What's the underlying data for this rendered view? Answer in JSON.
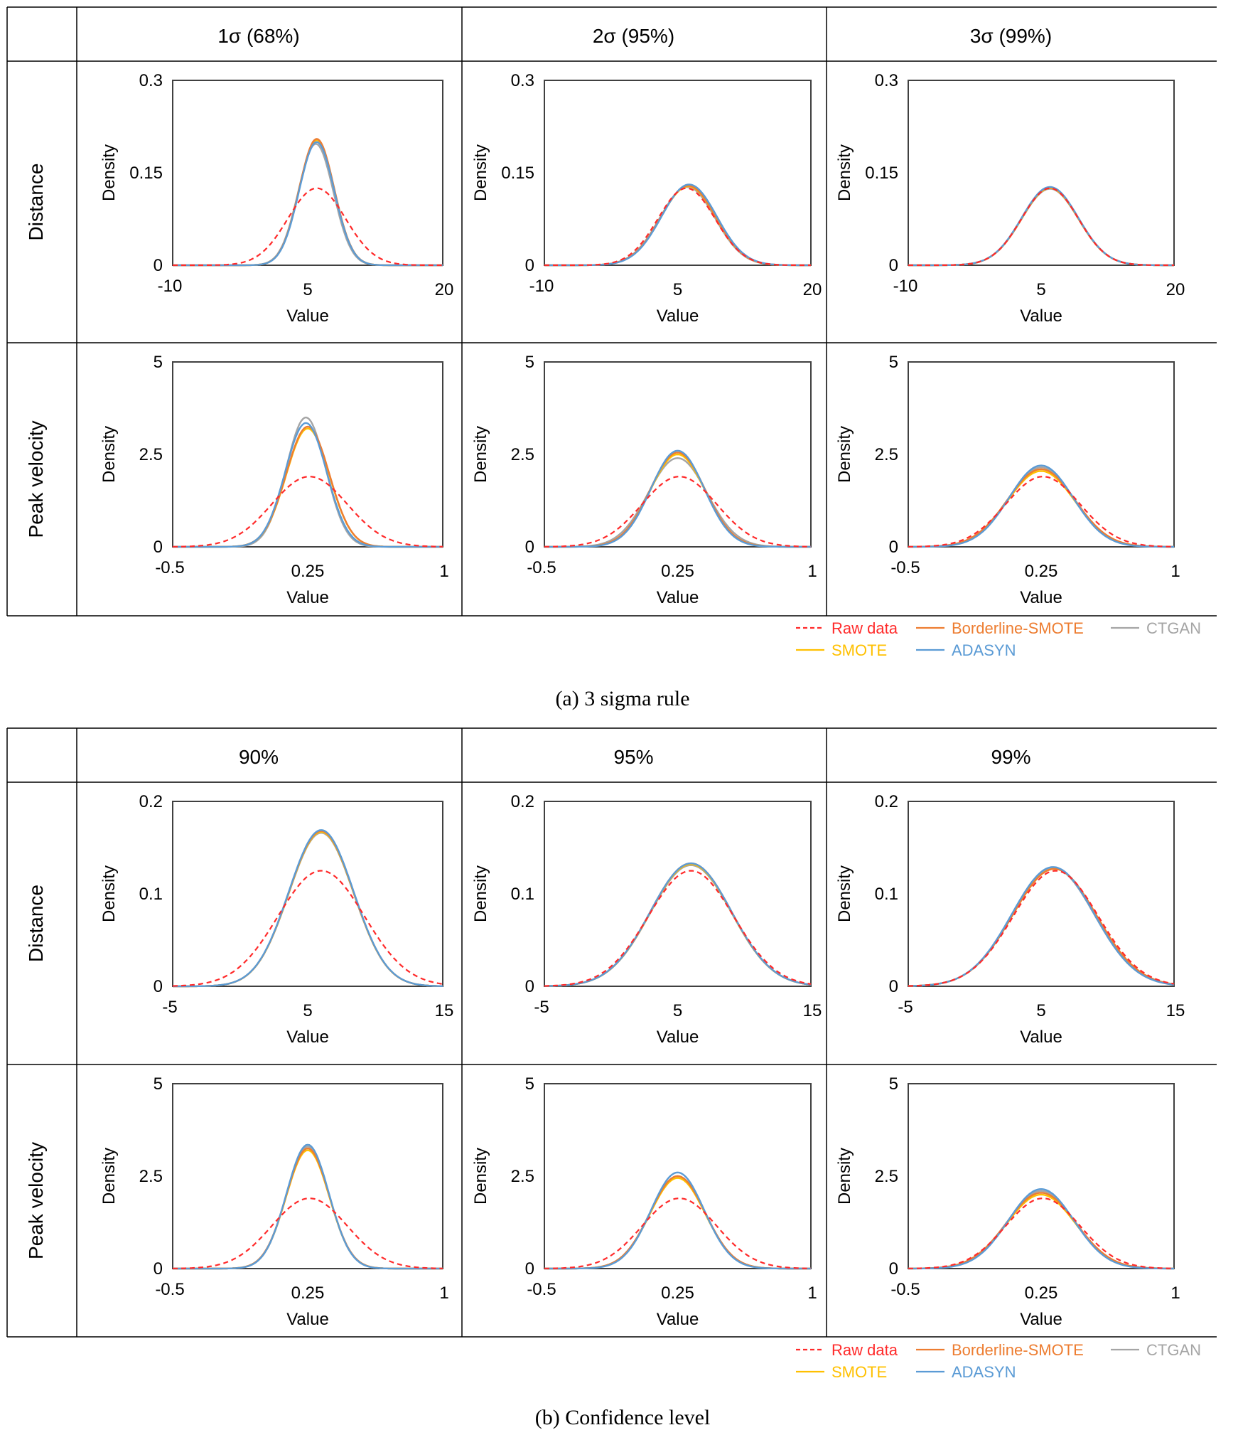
{
  "figure": {
    "row_labels": [
      "Distance",
      "Peak velocity"
    ],
    "x_axis_label": "Value",
    "y_axis_label": "Density",
    "colors": {
      "raw": "#ff2a2a",
      "smote": "#ffc000",
      "borderline": "#ed7d31",
      "adasyn": "#5b9bd5",
      "ctgan": "#a5a5a5",
      "grid": "#000000"
    },
    "legend": [
      {
        "key": "raw",
        "label": "Raw data",
        "style": "dashed"
      },
      {
        "key": "borderline",
        "label": "Borderline-SMOTE",
        "style": "solid"
      },
      {
        "key": "ctgan",
        "label": "CTGAN",
        "style": "solid"
      },
      {
        "key": "smote",
        "label": "SMOTE",
        "style": "solid"
      },
      {
        "key": "adasyn",
        "label": "ADASYN",
        "style": "solid"
      }
    ],
    "sections": [
      {
        "caption": "(a) 3 sigma rule",
        "column_headers": [
          "1σ (68%)",
          "2σ (95%)",
          "3σ (99%)"
        ]
      },
      {
        "caption": "(b) Confidence level",
        "column_headers": [
          "90%",
          "95%",
          "99%"
        ]
      }
    ]
  },
  "chart_data": [
    {
      "id": "a-distance-1",
      "type": "line",
      "xlim": [
        -10,
        20
      ],
      "ylim": [
        0,
        0.3
      ],
      "x_ticks": [
        "-10",
        "5",
        "20"
      ],
      "y_ticks": [
        "0",
        "0.15",
        "0.3"
      ],
      "series": [
        {
          "name": "Raw data",
          "key": "raw",
          "mean": 6,
          "peak": 0.125,
          "sd": 3.2
        },
        {
          "name": "SMOTE",
          "key": "smote",
          "mean": 6,
          "peak": 0.203,
          "sd": 1.95
        },
        {
          "name": "Borderline-SMOTE",
          "key": "borderline",
          "mean": 6,
          "peak": 0.205,
          "sd": 1.95
        },
        {
          "name": "ADASYN",
          "key": "adasyn",
          "mean": 6,
          "peak": 0.2,
          "sd": 1.95
        },
        {
          "name": "CTGAN",
          "key": "ctgan",
          "mean": 5.9,
          "peak": 0.197,
          "sd": 1.95
        }
      ]
    },
    {
      "id": "a-distance-2",
      "type": "line",
      "xlim": [
        -10,
        20
      ],
      "ylim": [
        0,
        0.3
      ],
      "x_ticks": [
        "-10",
        "5",
        "20"
      ],
      "y_ticks": [
        "0",
        "0.15",
        "0.3"
      ],
      "series": [
        {
          "name": "Raw data",
          "key": "raw",
          "mean": 6,
          "peak": 0.125,
          "sd": 3.2
        },
        {
          "name": "SMOTE",
          "key": "smote",
          "mean": 6.2,
          "peak": 0.128,
          "sd": 3.1
        },
        {
          "name": "Borderline-SMOTE",
          "key": "borderline",
          "mean": 6.2,
          "peak": 0.129,
          "sd": 3.1
        },
        {
          "name": "ADASYN",
          "key": "adasyn",
          "mean": 6.3,
          "peak": 0.131,
          "sd": 3.1
        },
        {
          "name": "CTGAN",
          "key": "ctgan",
          "mean": 6.1,
          "peak": 0.127,
          "sd": 3.1
        }
      ]
    },
    {
      "id": "a-distance-3",
      "type": "line",
      "xlim": [
        -10,
        20
      ],
      "ylim": [
        0,
        0.3
      ],
      "x_ticks": [
        "-10",
        "5",
        "20"
      ],
      "y_ticks": [
        "0",
        "0.15",
        "0.3"
      ],
      "series": [
        {
          "name": "Raw data",
          "key": "raw",
          "mean": 6,
          "peak": 0.125,
          "sd": 3.2
        },
        {
          "name": "SMOTE",
          "key": "smote",
          "mean": 6,
          "peak": 0.125,
          "sd": 3.2
        },
        {
          "name": "Borderline-SMOTE",
          "key": "borderline",
          "mean": 6,
          "peak": 0.126,
          "sd": 3.2
        },
        {
          "name": "ADASYN",
          "key": "adasyn",
          "mean": 6,
          "peak": 0.127,
          "sd": 3.2
        },
        {
          "name": "CTGAN",
          "key": "ctgan",
          "mean": 6,
          "peak": 0.124,
          "sd": 3.2
        }
      ]
    },
    {
      "id": "a-velocity-1",
      "type": "line",
      "xlim": [
        -0.5,
        1
      ],
      "ylim": [
        0,
        5
      ],
      "x_ticks": [
        "-0.5",
        "0.25",
        "1"
      ],
      "y_ticks": [
        "0",
        "2.5",
        "5"
      ],
      "series": [
        {
          "name": "Raw data",
          "key": "raw",
          "mean": 0.26,
          "peak": 1.9,
          "sd": 0.21
        },
        {
          "name": "SMOTE",
          "key": "smote",
          "mean": 0.25,
          "peak": 3.2,
          "sd": 0.12
        },
        {
          "name": "Borderline-SMOTE",
          "key": "borderline",
          "mean": 0.25,
          "peak": 3.25,
          "sd": 0.12
        },
        {
          "name": "ADASYN",
          "key": "adasyn",
          "mean": 0.24,
          "peak": 3.35,
          "sd": 0.115
        },
        {
          "name": "CTGAN",
          "key": "ctgan",
          "mean": 0.24,
          "peak": 3.5,
          "sd": 0.11
        }
      ]
    },
    {
      "id": "a-velocity-2",
      "type": "line",
      "xlim": [
        -0.5,
        1
      ],
      "ylim": [
        0,
        5
      ],
      "x_ticks": [
        "-0.5",
        "0.25",
        "1"
      ],
      "y_ticks": [
        "0",
        "2.5",
        "5"
      ],
      "series": [
        {
          "name": "Raw data",
          "key": "raw",
          "mean": 0.26,
          "peak": 1.9,
          "sd": 0.21
        },
        {
          "name": "SMOTE",
          "key": "smote",
          "mean": 0.25,
          "peak": 2.5,
          "sd": 0.155
        },
        {
          "name": "Borderline-SMOTE",
          "key": "borderline",
          "mean": 0.25,
          "peak": 2.55,
          "sd": 0.155
        },
        {
          "name": "ADASYN",
          "key": "adasyn",
          "mean": 0.25,
          "peak": 2.6,
          "sd": 0.15
        },
        {
          "name": "CTGAN",
          "key": "ctgan",
          "mean": 0.25,
          "peak": 2.4,
          "sd": 0.165
        }
      ]
    },
    {
      "id": "a-velocity-3",
      "type": "line",
      "xlim": [
        -0.5,
        1
      ],
      "ylim": [
        0,
        5
      ],
      "x_ticks": [
        "-0.5",
        "0.25",
        "1"
      ],
      "y_ticks": [
        "0",
        "2.5",
        "5"
      ],
      "series": [
        {
          "name": "Raw data",
          "key": "raw",
          "mean": 0.26,
          "peak": 1.9,
          "sd": 0.21
        },
        {
          "name": "SMOTE",
          "key": "smote",
          "mean": 0.25,
          "peak": 2.05,
          "sd": 0.19
        },
        {
          "name": "Borderline-SMOTE",
          "key": "borderline",
          "mean": 0.25,
          "peak": 2.1,
          "sd": 0.19
        },
        {
          "name": "ADASYN",
          "key": "adasyn",
          "mean": 0.25,
          "peak": 2.2,
          "sd": 0.18
        },
        {
          "name": "CTGAN",
          "key": "ctgan",
          "mean": 0.25,
          "peak": 2.15,
          "sd": 0.185
        }
      ]
    },
    {
      "id": "b-distance-1",
      "type": "line",
      "xlim": [
        -5,
        15
      ],
      "ylim": [
        0,
        0.2
      ],
      "x_ticks": [
        "-5",
        "5",
        "15"
      ],
      "y_ticks": [
        "0",
        "0.1",
        "0.2"
      ],
      "series": [
        {
          "name": "Raw data",
          "key": "raw",
          "mean": 6,
          "peak": 0.125,
          "sd": 3.2
        },
        {
          "name": "SMOTE",
          "key": "smote",
          "mean": 6,
          "peak": 0.167,
          "sd": 2.4
        },
        {
          "name": "Borderline-SMOTE",
          "key": "borderline",
          "mean": 6,
          "peak": 0.168,
          "sd": 2.4
        },
        {
          "name": "ADASYN",
          "key": "adasyn",
          "mean": 6,
          "peak": 0.169,
          "sd": 2.4
        },
        {
          "name": "CTGAN",
          "key": "ctgan",
          "mean": 6,
          "peak": 0.166,
          "sd": 2.4
        }
      ]
    },
    {
      "id": "b-distance-2",
      "type": "line",
      "xlim": [
        -5,
        15
      ],
      "ylim": [
        0,
        0.2
      ],
      "x_ticks": [
        "-5",
        "5",
        "15"
      ],
      "y_ticks": [
        "0",
        "0.1",
        "0.2"
      ],
      "series": [
        {
          "name": "Raw data",
          "key": "raw",
          "mean": 6,
          "peak": 0.125,
          "sd": 3.2
        },
        {
          "name": "SMOTE",
          "key": "smote",
          "mean": 6,
          "peak": 0.132,
          "sd": 3.05
        },
        {
          "name": "Borderline-SMOTE",
          "key": "borderline",
          "mean": 6,
          "peak": 0.133,
          "sd": 3.05
        },
        {
          "name": "ADASYN",
          "key": "adasyn",
          "mean": 6,
          "peak": 0.133,
          "sd": 3.05
        },
        {
          "name": "CTGAN",
          "key": "ctgan",
          "mean": 6,
          "peak": 0.131,
          "sd": 3.05
        }
      ]
    },
    {
      "id": "b-distance-3",
      "type": "line",
      "xlim": [
        -5,
        15
      ],
      "ylim": [
        0,
        0.2
      ],
      "x_ticks": [
        "-5",
        "5",
        "15"
      ],
      "y_ticks": [
        "0",
        "0.1",
        "0.2"
      ],
      "series": [
        {
          "name": "Raw data",
          "key": "raw",
          "mean": 6.1,
          "peak": 0.125,
          "sd": 3.2
        },
        {
          "name": "SMOTE",
          "key": "smote",
          "mean": 6,
          "peak": 0.127,
          "sd": 3.15
        },
        {
          "name": "Borderline-SMOTE",
          "key": "borderline",
          "mean": 6,
          "peak": 0.127,
          "sd": 3.15
        },
        {
          "name": "ADASYN",
          "key": "adasyn",
          "mean": 5.9,
          "peak": 0.129,
          "sd": 3.1
        },
        {
          "name": "CTGAN",
          "key": "ctgan",
          "mean": 5.9,
          "peak": 0.128,
          "sd": 3.1
        }
      ]
    },
    {
      "id": "b-velocity-1",
      "type": "line",
      "xlim": [
        -0.5,
        1
      ],
      "ylim": [
        0,
        5
      ],
      "x_ticks": [
        "-0.5",
        "0.25",
        "1"
      ],
      "y_ticks": [
        "0",
        "2.5",
        "5"
      ],
      "series": [
        {
          "name": "Raw data",
          "key": "raw",
          "mean": 0.26,
          "peak": 1.9,
          "sd": 0.21
        },
        {
          "name": "SMOTE",
          "key": "smote",
          "mean": 0.25,
          "peak": 3.2,
          "sd": 0.12
        },
        {
          "name": "Borderline-SMOTE",
          "key": "borderline",
          "mean": 0.25,
          "peak": 3.25,
          "sd": 0.12
        },
        {
          "name": "ADASYN",
          "key": "adasyn",
          "mean": 0.25,
          "peak": 3.35,
          "sd": 0.118
        },
        {
          "name": "CTGAN",
          "key": "ctgan",
          "mean": 0.25,
          "peak": 3.3,
          "sd": 0.118
        }
      ]
    },
    {
      "id": "b-velocity-2",
      "type": "line",
      "xlim": [
        -0.5,
        1
      ],
      "ylim": [
        0,
        5
      ],
      "x_ticks": [
        "-0.5",
        "0.25",
        "1"
      ],
      "y_ticks": [
        "0",
        "2.5",
        "5"
      ],
      "series": [
        {
          "name": "Raw data",
          "key": "raw",
          "mean": 0.26,
          "peak": 1.9,
          "sd": 0.21
        },
        {
          "name": "SMOTE",
          "key": "smote",
          "mean": 0.25,
          "peak": 2.45,
          "sd": 0.155
        },
        {
          "name": "Borderline-SMOTE",
          "key": "borderline",
          "mean": 0.25,
          "peak": 2.5,
          "sd": 0.155
        },
        {
          "name": "ADASYN",
          "key": "adasyn",
          "mean": 0.25,
          "peak": 2.6,
          "sd": 0.15
        },
        {
          "name": "CTGAN",
          "key": "ctgan",
          "mean": 0.25,
          "peak": 2.5,
          "sd": 0.155
        }
      ]
    },
    {
      "id": "b-velocity-3",
      "type": "line",
      "xlim": [
        -0.5,
        1
      ],
      "ylim": [
        0,
        5
      ],
      "x_ticks": [
        "-0.5",
        "0.25",
        "1"
      ],
      "y_ticks": [
        "0",
        "2.5",
        "5"
      ],
      "series": [
        {
          "name": "Raw data",
          "key": "raw",
          "mean": 0.26,
          "peak": 1.9,
          "sd": 0.21
        },
        {
          "name": "SMOTE",
          "key": "smote",
          "mean": 0.25,
          "peak": 2.0,
          "sd": 0.195
        },
        {
          "name": "Borderline-SMOTE",
          "key": "borderline",
          "mean": 0.25,
          "peak": 2.05,
          "sd": 0.195
        },
        {
          "name": "ADASYN",
          "key": "adasyn",
          "mean": 0.25,
          "peak": 2.15,
          "sd": 0.185
        },
        {
          "name": "CTGAN",
          "key": "ctgan",
          "mean": 0.25,
          "peak": 2.1,
          "sd": 0.19
        }
      ]
    }
  ]
}
